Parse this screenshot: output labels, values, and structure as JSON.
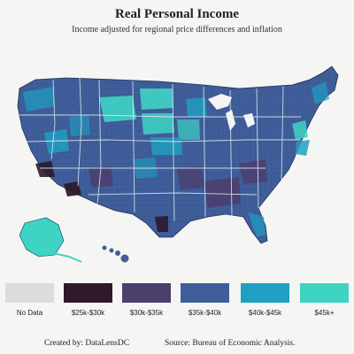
{
  "title": "Real Personal Income",
  "subtitle": "Income adjusted for regional price differences and inflation",
  "legend": [
    {
      "label": "No Data",
      "color": "#dcdcdc"
    },
    {
      "label": "$25k-$30k",
      "color": "#2e1a2c"
    },
    {
      "label": "$30k-$35k",
      "color": "#4b3f6e"
    },
    {
      "label": "$35k-$40k",
      "color": "#3f5e9a"
    },
    {
      "label": "$40k-$45k",
      "color": "#1fa0c2"
    },
    {
      "label": "$45k+",
      "color": "#3fd3c4"
    }
  ],
  "footer": {
    "credit": "Created by: DataLensDC",
    "source": "Source: Bureau of Economic Analysis."
  }
}
